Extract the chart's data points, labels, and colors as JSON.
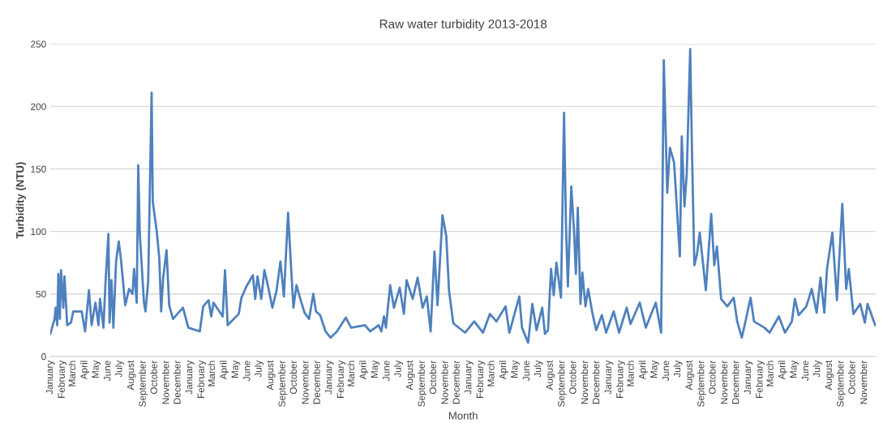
{
  "chart_data": {
    "type": "line",
    "title": "Raw water turbidity 2013-2018",
    "xlabel": "Month",
    "ylabel": "Turbidity (NTU)",
    "x": [
      "2013-01-01",
      "2013-01-12",
      "2013-01-15",
      "2013-01-19",
      "2013-01-22",
      "2013-01-26",
      "2013-01-29",
      "2013-02-04",
      "2013-02-07",
      "2013-02-11",
      "2013-02-14",
      "2013-02-24",
      "2013-03-02",
      "2013-03-24",
      "2013-04-02",
      "2013-04-12",
      "2013-04-19",
      "2013-04-29",
      "2013-05-07",
      "2013-05-11",
      "2013-05-20",
      "2013-05-25",
      "2013-06-02",
      "2013-06-05",
      "2013-06-10",
      "2013-06-15",
      "2013-06-22",
      "2013-06-29",
      "2013-07-05",
      "2013-07-16",
      "2013-07-26",
      "2013-08-04",
      "2013-08-08",
      "2013-08-15",
      "2013-08-19",
      "2013-08-23",
      "2013-09-03",
      "2013-09-07",
      "2013-09-14",
      "2013-09-23",
      "2013-09-26",
      "2013-10-06",
      "2013-10-13",
      "2013-10-18",
      "2013-10-23",
      "2013-11-01",
      "2013-11-08",
      "2013-11-18",
      "2013-12-14",
      "2013-12-28",
      "2014-01-27",
      "2014-02-05",
      "2014-02-19",
      "2014-02-26",
      "2014-03-04",
      "2014-03-28",
      "2014-04-03",
      "2014-04-10",
      "2014-05-09",
      "2014-05-16",
      "2014-05-29",
      "2014-06-15",
      "2014-06-21",
      "2014-06-27",
      "2014-07-07",
      "2014-07-15",
      "2014-07-24",
      "2014-08-05",
      "2014-08-16",
      "2014-08-26",
      "2014-09-04",
      "2014-09-15",
      "2014-09-22",
      "2014-09-29",
      "2014-10-07",
      "2014-10-17",
      "2014-10-28",
      "2014-11-09",
      "2014-11-20",
      "2014-11-27",
      "2014-12-08",
      "2014-12-22",
      "2015-01-04",
      "2015-01-21",
      "2015-02-13",
      "2015-02-27",
      "2015-04-04",
      "2015-04-18",
      "2015-05-10",
      "2015-05-17",
      "2015-05-24",
      "2015-05-29",
      "2015-06-09",
      "2015-06-19",
      "2015-07-04",
      "2015-07-15",
      "2015-07-22",
      "2015-08-07",
      "2015-08-20",
      "2015-09-02",
      "2015-09-13",
      "2015-09-23",
      "2015-10-03",
      "2015-10-11",
      "2015-10-24",
      "2015-11-03",
      "2015-11-10",
      "2015-11-21",
      "2015-11-23",
      "2015-12-22",
      "2016-01-15",
      "2016-02-07",
      "2016-02-25",
      "2016-03-13",
      "2016-04-06",
      "2016-04-16",
      "2016-05-12",
      "2016-05-19",
      "2016-06-04",
      "2016-06-15",
      "2016-06-26",
      "2016-07-11",
      "2016-07-18",
      "2016-07-26",
      "2016-08-03",
      "2016-08-10",
      "2016-08-17",
      "2016-08-29",
      "2016-09-06",
      "2016-09-11",
      "2016-09-16",
      "2016-09-25",
      "2016-10-02",
      "2016-10-07",
      "2016-10-12",
      "2016-10-19",
      "2016-10-24",
      "2016-11-01",
      "2016-11-08",
      "2016-11-19",
      "2016-11-29",
      "2016-12-14",
      "2016-12-25",
      "2017-01-14",
      "2017-01-28",
      "2017-02-17",
      "2017-02-27",
      "2017-03-23",
      "2017-04-08",
      "2017-05-04",
      "2017-05-18",
      "2017-05-25",
      "2017-06-03",
      "2017-06-10",
      "2017-06-21",
      "2017-07-06",
      "2017-07-11",
      "2017-07-18",
      "2017-07-24",
      "2017-08-02",
      "2017-08-07",
      "2017-08-13",
      "2017-08-20",
      "2017-08-27",
      "2017-09-12",
      "2017-09-26",
      "2017-10-04",
      "2017-10-11",
      "2017-10-22",
      "2017-11-07",
      "2017-11-24",
      "2017-12-03",
      "2017-12-15",
      "2017-12-24",
      "2018-01-07",
      "2018-01-16",
      "2018-02-12",
      "2018-02-26",
      "2018-03-22",
      "2018-04-07",
      "2018-04-25",
      "2018-05-03",
      "2018-05-13",
      "2018-06-02",
      "2018-06-16",
      "2018-06-29",
      "2018-07-09",
      "2018-07-19",
      "2018-07-26",
      "2018-08-09",
      "2018-08-21",
      "2018-09-04",
      "2018-09-14",
      "2018-09-21",
      "2018-10-03",
      "2018-10-21",
      "2018-11-02",
      "2018-11-09",
      "2018-11-29"
    ],
    "values": [
      18,
      30,
      39,
      25,
      66,
      30,
      69,
      39,
      64,
      43,
      25,
      27,
      36,
      36,
      20,
      53,
      25,
      43,
      25,
      46,
      23,
      57,
      98,
      27,
      61,
      23,
      76,
      92,
      77,
      41,
      54,
      50,
      70,
      43,
      153,
      99,
      43,
      36,
      60,
      211,
      124,
      101,
      79,
      36,
      62,
      85,
      41,
      30,
      39,
      23,
      20,
      40,
      45,
      32,
      43,
      32,
      69,
      25,
      34,
      47,
      56,
      65,
      46,
      64,
      46,
      69,
      57,
      39,
      53,
      76,
      48,
      115,
      76,
      39,
      57,
      46,
      35,
      30,
      50,
      36,
      33,
      20,
      15,
      20,
      31,
      23,
      25,
      20,
      25,
      20,
      32,
      23,
      57,
      39,
      55,
      34,
      61,
      46,
      63,
      39,
      48,
      20,
      84,
      41,
      113,
      96,
      53,
      27,
      26,
      19,
      28,
      19,
      34,
      28,
      40,
      19,
      48,
      23,
      11,
      42,
      21,
      39,
      18,
      21,
      70,
      49,
      75,
      47,
      195,
      106,
      56,
      136,
      101,
      66,
      119,
      42,
      67,
      40,
      54,
      35,
      21,
      33,
      19,
      36,
      19,
      39,
      26,
      43,
      23,
      43,
      19,
      237,
      131,
      167,
      155,
      80,
      176,
      120,
      146,
      246,
      160,
      73,
      82,
      99,
      53,
      114,
      73,
      88,
      46,
      40,
      47,
      28,
      15,
      27,
      47,
      28,
      23,
      19,
      32,
      19,
      28,
      46,
      33,
      40,
      54,
      35,
      63,
      35,
      70,
      99,
      45,
      122,
      54,
      70,
      34,
      42,
      27,
      42,
      25
    ],
    "color": "#4f81bd",
    "xlim": [
      "2013-01-01",
      "2018-12-01"
    ],
    "xticks": [
      {
        "value": "2013-01-01",
        "label": "January"
      },
      {
        "value": "2013-02-01",
        "label": "February"
      },
      {
        "value": "2013-03-01",
        "label": "March"
      },
      {
        "value": "2013-04-01",
        "label": "April"
      },
      {
        "value": "2013-05-01",
        "label": "May"
      },
      {
        "value": "2013-06-01",
        "label": "June"
      },
      {
        "value": "2013-07-01",
        "label": "July"
      },
      {
        "value": "2013-08-01",
        "label": "August"
      },
      {
        "value": "2013-09-01",
        "label": "September"
      },
      {
        "value": "2013-10-01",
        "label": "October"
      },
      {
        "value": "2013-11-01",
        "label": "November"
      },
      {
        "value": "2013-12-01",
        "label": "December"
      },
      {
        "value": "2014-01-01",
        "label": "January"
      },
      {
        "value": "2014-02-01",
        "label": "February"
      },
      {
        "value": "2014-03-01",
        "label": "March"
      },
      {
        "value": "2014-04-01",
        "label": "April"
      },
      {
        "value": "2014-05-01",
        "label": "May"
      },
      {
        "value": "2014-06-01",
        "label": "June"
      },
      {
        "value": "2014-07-01",
        "label": "July"
      },
      {
        "value": "2014-08-01",
        "label": "August"
      },
      {
        "value": "2014-09-01",
        "label": "September"
      },
      {
        "value": "2014-10-01",
        "label": "October"
      },
      {
        "value": "2014-11-01",
        "label": "November"
      },
      {
        "value": "2014-12-01",
        "label": "December"
      },
      {
        "value": "2015-01-01",
        "label": "January"
      },
      {
        "value": "2015-02-01",
        "label": "February"
      },
      {
        "value": "2015-03-01",
        "label": "March"
      },
      {
        "value": "2015-04-01",
        "label": "April"
      },
      {
        "value": "2015-05-01",
        "label": "May"
      },
      {
        "value": "2015-06-01",
        "label": "June"
      },
      {
        "value": "2015-07-01",
        "label": "July"
      },
      {
        "value": "2015-08-01",
        "label": "August"
      },
      {
        "value": "2015-09-01",
        "label": "September"
      },
      {
        "value": "2015-10-01",
        "label": "October"
      },
      {
        "value": "2015-11-01",
        "label": "November"
      },
      {
        "value": "2015-12-01",
        "label": "December"
      },
      {
        "value": "2016-01-01",
        "label": "January"
      },
      {
        "value": "2016-02-01",
        "label": "February"
      },
      {
        "value": "2016-03-01",
        "label": "March"
      },
      {
        "value": "2016-04-01",
        "label": "April"
      },
      {
        "value": "2016-05-01",
        "label": "May"
      },
      {
        "value": "2016-06-01",
        "label": "June"
      },
      {
        "value": "2016-07-01",
        "label": "July"
      },
      {
        "value": "2016-08-01",
        "label": "August"
      },
      {
        "value": "2016-09-01",
        "label": "September"
      },
      {
        "value": "2016-10-01",
        "label": "October"
      },
      {
        "value": "2016-11-01",
        "label": "November"
      },
      {
        "value": "2016-12-01",
        "label": "December"
      },
      {
        "value": "2017-01-01",
        "label": "January"
      },
      {
        "value": "2017-02-01",
        "label": "February"
      },
      {
        "value": "2017-03-01",
        "label": "March"
      },
      {
        "value": "2017-04-01",
        "label": "April"
      },
      {
        "value": "2017-05-01",
        "label": "May"
      },
      {
        "value": "2017-06-01",
        "label": "June"
      },
      {
        "value": "2017-07-01",
        "label": "July"
      },
      {
        "value": "2017-08-01",
        "label": "August"
      },
      {
        "value": "2017-09-01",
        "label": "September"
      },
      {
        "value": "2017-10-01",
        "label": "October"
      },
      {
        "value": "2017-11-01",
        "label": "November"
      },
      {
        "value": "2017-12-01",
        "label": "December"
      },
      {
        "value": "2018-01-01",
        "label": "January"
      },
      {
        "value": "2018-02-01",
        "label": "February"
      },
      {
        "value": "2018-03-01",
        "label": "March"
      },
      {
        "value": "2018-04-01",
        "label": "April"
      },
      {
        "value": "2018-05-01",
        "label": "May"
      },
      {
        "value": "2018-06-01",
        "label": "June"
      },
      {
        "value": "2018-07-01",
        "label": "July"
      },
      {
        "value": "2018-08-01",
        "label": "August"
      },
      {
        "value": "2018-09-01",
        "label": "September"
      },
      {
        "value": "2018-10-01",
        "label": "October"
      },
      {
        "value": "2018-11-01",
        "label": "November"
      }
    ],
    "ylim": [
      0,
      250
    ],
    "yticks": [
      0,
      50,
      100,
      150,
      200,
      250
    ],
    "grid": "y"
  }
}
